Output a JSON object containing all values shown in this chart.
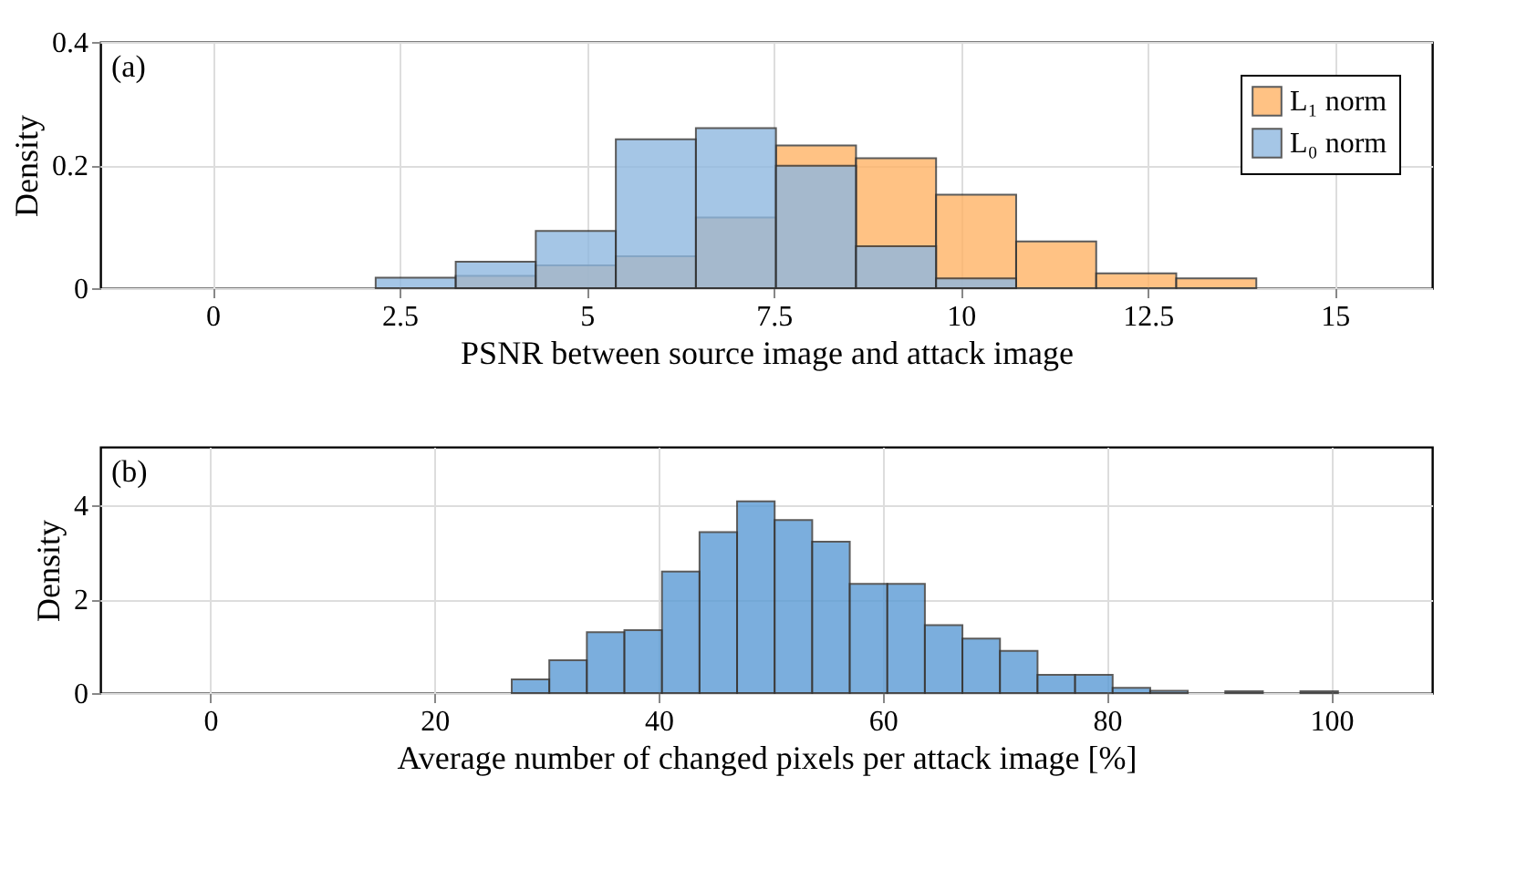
{
  "chart_data": [
    {
      "type": "histogram",
      "xlabel": "PSNR between source image and attack image",
      "ylabel": "Density",
      "annotations": [
        "(a)"
      ],
      "bins": [
        2.18,
        3.25,
        4.32,
        5.39,
        6.46,
        7.53,
        8.6,
        9.67,
        10.74,
        11.81,
        12.88,
        13.95
      ],
      "series": [
        {
          "name": "L₁ norm",
          "color": "#ffb366",
          "values": [
            null,
            0.02,
            0.037,
            0.052,
            0.115,
            0.232,
            0.211,
            0.152,
            0.076,
            0.024,
            0.016
          ]
        },
        {
          "name": "L₀ norm",
          "color": "#8fb8e0",
          "values": [
            0.017,
            0.043,
            0.093,
            0.242,
            0.26,
            0.199,
            0.068,
            0.016,
            null,
            null,
            null
          ]
        }
      ],
      "xlim": [
        -1.5,
        16.3
      ],
      "xticks": [
        0,
        2.5,
        5,
        7.5,
        10,
        12.5,
        15
      ],
      "ylim": [
        0,
        0.4
      ],
      "yticks": [
        0,
        0.2,
        0.4
      ],
      "grid": true,
      "legend": "top right"
    },
    {
      "type": "histogram",
      "xlabel": "Average number of changed pixels per attack image [%]",
      "ylabel": "Density",
      "annotations": [
        "(b)"
      ],
      "bins": [
        26.9,
        30.25,
        33.6,
        36.95,
        40.3,
        43.65,
        47,
        50.35,
        53.7,
        57.05,
        60.4,
        63.75,
        67.1,
        70.45,
        73.8,
        77.15,
        80.5,
        83.85,
        87.2,
        90.55,
        93.9,
        97.25,
        100.6
      ],
      "series": [
        {
          "color": "#5b9bd5",
          "values": [
            0.29,
            0.7,
            1.3,
            1.34,
            2.59,
            3.43,
            4.09,
            3.69,
            3.23,
            2.33,
            2.33,
            1.45,
            1.16,
            0.9,
            0.39,
            0.39,
            0.11,
            0.05,
            null,
            0.04,
            null,
            0.04
          ]
        }
      ],
      "xlim": [
        -9.8,
        109
      ],
      "xticks": [
        0,
        20,
        40,
        60,
        80,
        100
      ],
      "ylim": [
        0,
        5.25
      ],
      "yticks": [
        0,
        2,
        4
      ],
      "grid": true
    }
  ]
}
